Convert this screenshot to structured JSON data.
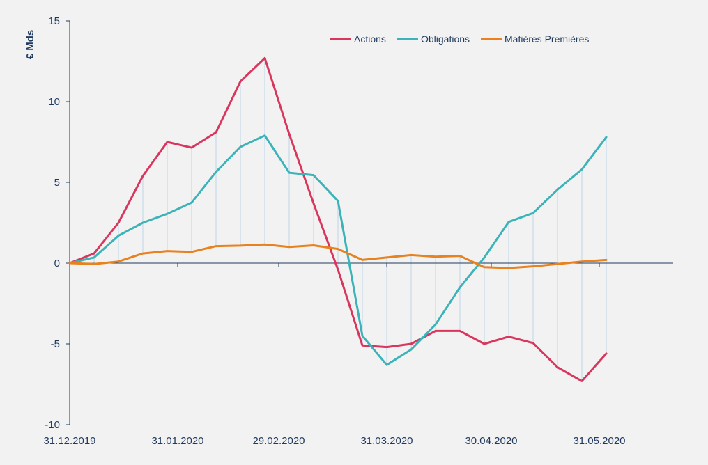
{
  "chart_data": {
    "type": "line",
    "title": "",
    "xlabel": "",
    "ylabel": "€ Mds",
    "ylim": [
      -10,
      15
    ],
    "yticks": [
      -10,
      -5,
      0,
      5,
      10,
      15
    ],
    "yticks_labels": [
      "-10",
      "-5",
      "0",
      "5",
      "10",
      "15"
    ],
    "grid": false,
    "legend_position": "top-right",
    "x_tick_labels": [
      "31.12.2019",
      "31.01.2020",
      "29.02.2020",
      "31.03.2020",
      "30.04.2020",
      "31.05.2020"
    ],
    "x": [
      "2019-12-31",
      "2020-01-07",
      "2020-01-14",
      "2020-01-21",
      "2020-01-28",
      "2020-02-04",
      "2020-02-11",
      "2020-02-18",
      "2020-02-25",
      "2020-03-03",
      "2020-03-10",
      "2020-03-17",
      "2020-03-24",
      "2020-03-31",
      "2020-04-07",
      "2020-04-14",
      "2020-04-21",
      "2020-04-28",
      "2020-05-05",
      "2020-05-12",
      "2020-05-19",
      "2020-05-26",
      "2020-06-02"
    ],
    "series": [
      {
        "name": "Actions",
        "color": "#d9365e",
        "values": [
          0,
          0.6,
          2.5,
          5.4,
          7.5,
          7.15,
          8.1,
          11.25,
          12.7,
          8.0,
          3.7,
          -0.4,
          -5.1,
          -5.2,
          -5.0,
          -4.2,
          -4.2,
          -5.0,
          -4.55,
          -4.95,
          -6.45,
          -7.3,
          -5.6
        ]
      },
      {
        "name": "Obligations",
        "color": "#3bb3b8",
        "values": [
          0,
          0.35,
          1.7,
          2.5,
          3.05,
          3.75,
          5.65,
          7.2,
          7.9,
          5.6,
          5.45,
          3.85,
          -4.5,
          -6.3,
          -5.35,
          -3.8,
          -1.5,
          0.35,
          2.55,
          3.1,
          4.55,
          5.8,
          7.8
        ]
      },
      {
        "name": "Matières Premières",
        "color": "#e8821f",
        "values": [
          0,
          -0.05,
          0.1,
          0.6,
          0.75,
          0.7,
          1.05,
          1.08,
          1.15,
          1.0,
          1.1,
          0.88,
          0.2,
          0.35,
          0.5,
          0.4,
          0.45,
          -0.25,
          -0.3,
          -0.2,
          -0.05,
          0.1,
          0.2
        ]
      }
    ],
    "colors": {
      "axis": "#1f3a5f",
      "dropline": "#bcd6ea",
      "background": "#f2f2f2"
    }
  }
}
